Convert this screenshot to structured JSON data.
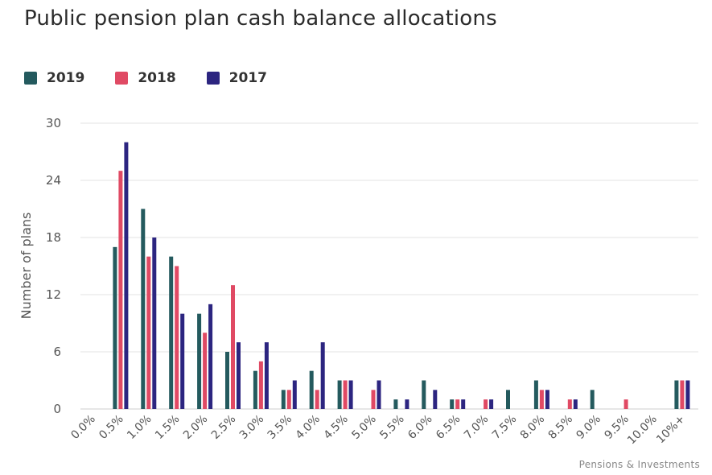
{
  "chart_data": {
    "type": "bar",
    "title": "Public pension plan cash balance allocations",
    "ylabel": "Number of plans",
    "xlabel": "",
    "categories": [
      "0.0%",
      "0.5%",
      "1.0%",
      "1.5%",
      "2.0%",
      "2.5%",
      "3.0%",
      "3.5%",
      "4.0%",
      "4.5%",
      "5.0%",
      "5.5%",
      "6.0%",
      "6.5%",
      "7.0%",
      "7.5%",
      "8.0%",
      "8.5%",
      "9.0%",
      "9.5%",
      "10.0%",
      "10%+"
    ],
    "yticks": [
      "0",
      "6",
      "12",
      "18",
      "24",
      "30"
    ],
    "ylim": [
      0,
      30
    ],
    "grid": true,
    "legend_position": "top-left",
    "series": [
      {
        "name": "2019",
        "color": "#245a5e",
        "values": [
          0,
          17,
          21,
          16,
          10,
          6,
          4,
          2,
          4,
          3,
          0,
          1,
          3,
          1,
          0,
          2,
          3,
          0,
          2,
          0,
          0,
          3
        ]
      },
      {
        "name": "2018",
        "color": "#e04a64",
        "values": [
          0,
          25,
          16,
          15,
          8,
          13,
          5,
          2,
          2,
          3,
          2,
          0,
          0,
          1,
          1,
          0,
          2,
          1,
          0,
          1,
          0,
          3
        ]
      },
      {
        "name": "2017",
        "color": "#2c2580",
        "values": [
          0,
          28,
          18,
          10,
          11,
          7,
          7,
          3,
          7,
          3,
          3,
          1,
          2,
          1,
          1,
          0,
          2,
          1,
          0,
          0,
          0,
          3
        ]
      }
    ],
    "source": "Pensions & Investments"
  }
}
